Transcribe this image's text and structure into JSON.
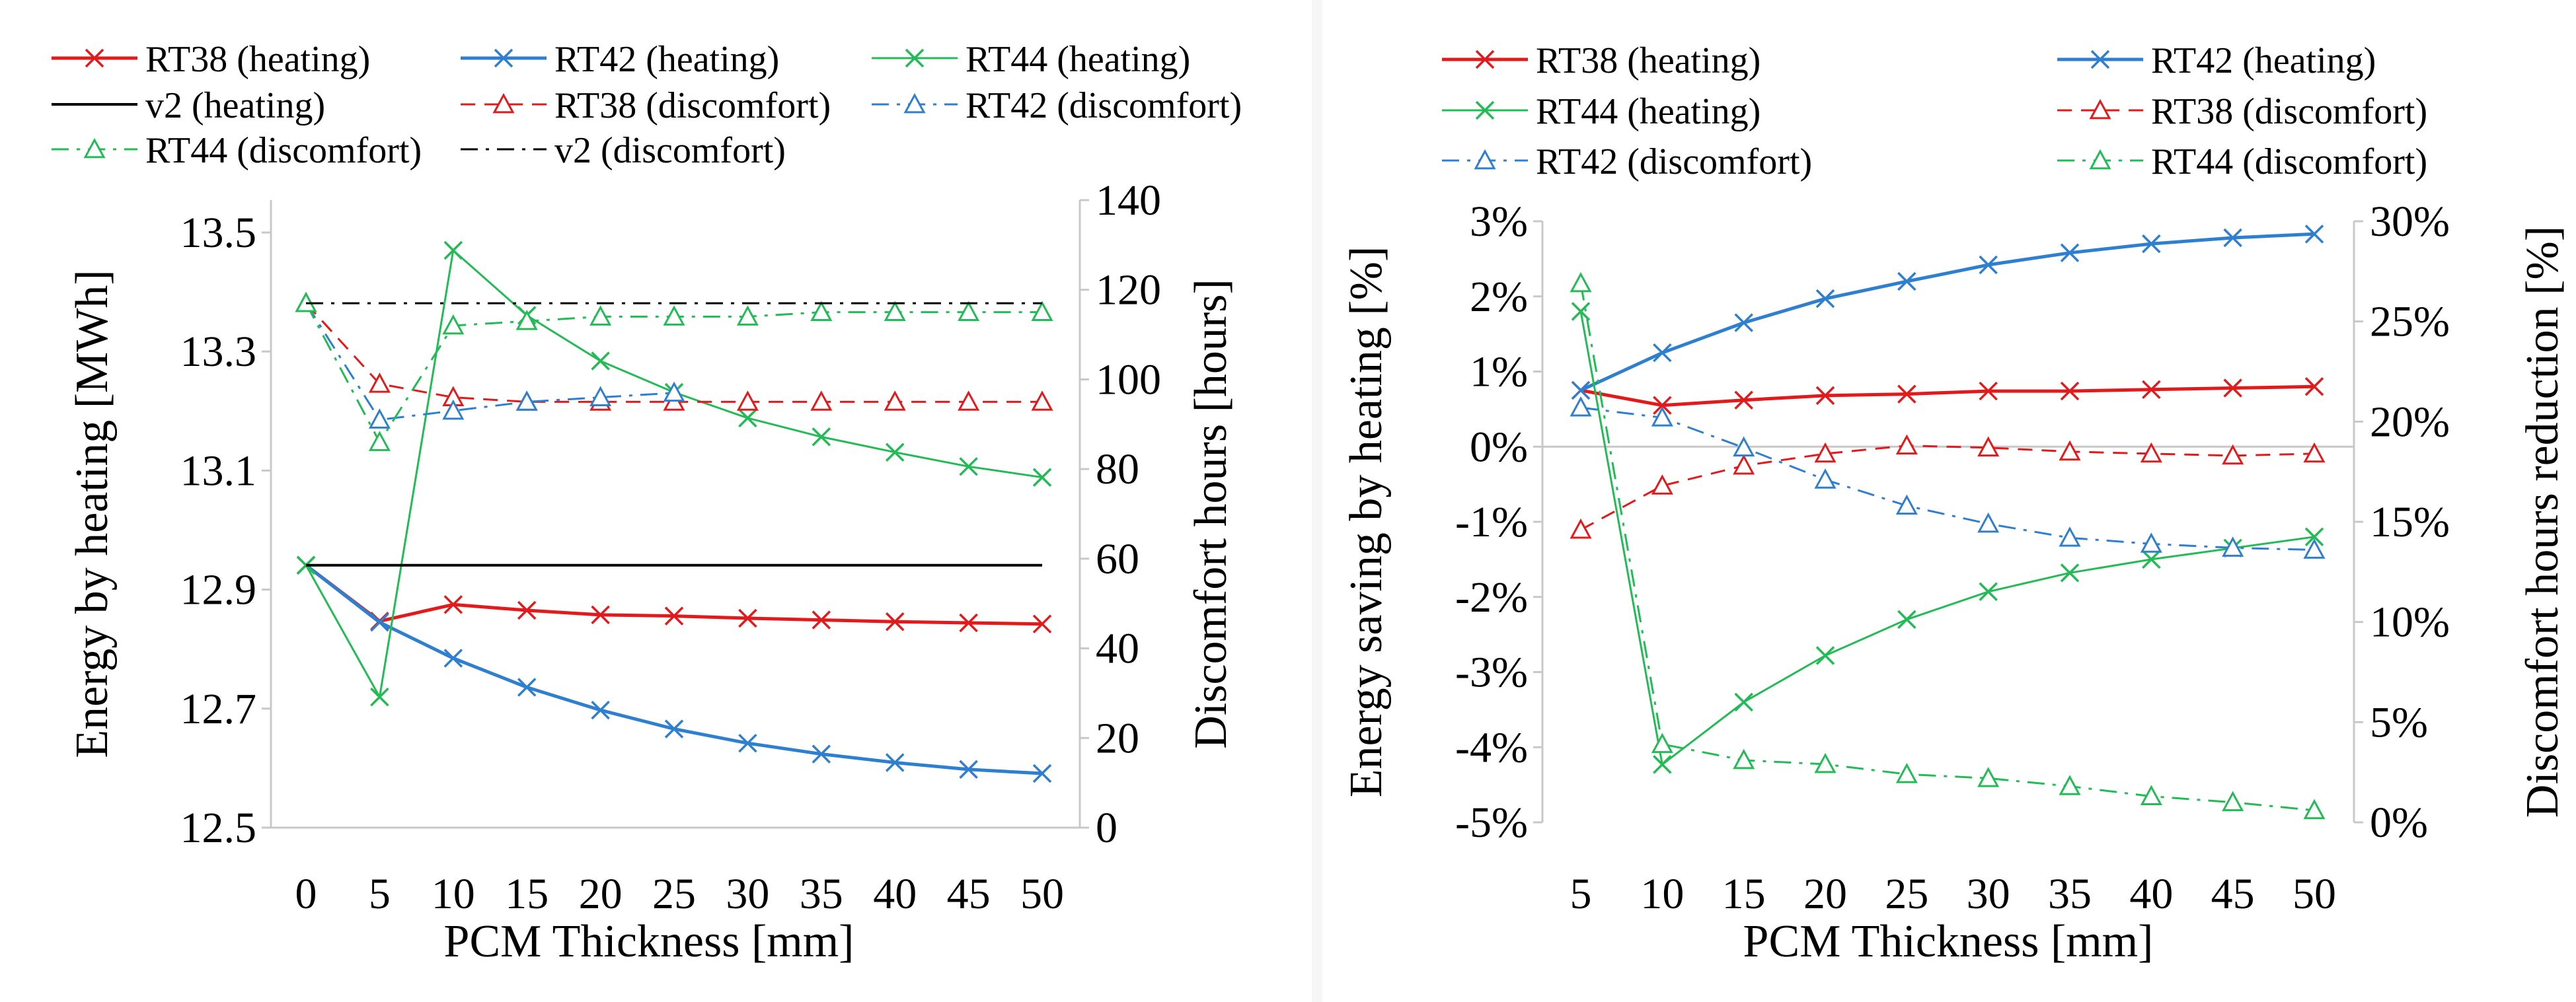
{
  "chart_data": [
    {
      "type": "line",
      "xlabel": "PCM Thickness [mm]",
      "ylabel": "Energy by heating [MWh]",
      "y2label": "Discomfort hours [hours]",
      "x": [
        0,
        5,
        10,
        15,
        20,
        25,
        30,
        35,
        40,
        45,
        50
      ],
      "ylim": [
        12.5,
        13.6
      ],
      "yticks": [
        "12.5",
        "12.7",
        "12.9",
        "13.1",
        "13.3",
        "13.5"
      ],
      "y2lim": [
        0,
        140
      ],
      "y2ticks": [
        "0",
        "20",
        "40",
        "60",
        "80",
        "100",
        "120",
        "140"
      ],
      "legend_position": "top",
      "series": [
        {
          "name": "RT38 (heating)",
          "axis": "left",
          "color": "#e31a1c",
          "dash": "solid",
          "marker": "x",
          "width": 5,
          "values": [
            12.96,
            12.862,
            12.891,
            12.881,
            12.873,
            12.871,
            12.867,
            12.864,
            12.861,
            12.859,
            12.857
          ]
        },
        {
          "name": "RT42 (heating)",
          "axis": "left",
          "color": "#2f7fd0",
          "dash": "solid",
          "marker": "x",
          "width": 5,
          "values": [
            12.96,
            12.86,
            12.797,
            12.746,
            12.706,
            12.673,
            12.648,
            12.629,
            12.614,
            12.602,
            12.595
          ]
        },
        {
          "name": "RT44  (heating)",
          "axis": "left",
          "color": "#22bb55",
          "dash": "solid",
          "marker": "x",
          "width": 3,
          "values": [
            12.96,
            12.729,
            13.512,
            13.398,
            13.318,
            13.263,
            13.218,
            13.185,
            13.158,
            13.133,
            13.114
          ]
        },
        {
          "name": "v2 (heating)",
          "axis": "left",
          "color": "#000000",
          "dash": "solid",
          "marker": "none",
          "width": 4,
          "values": [
            12.96,
            12.96,
            12.96,
            12.96,
            12.96,
            12.96,
            12.96,
            12.96,
            12.96,
            12.96,
            12.96
          ]
        },
        {
          "name": "RT38 (discomfort)",
          "axis": "right",
          "color": "#e31a1c",
          "dash": "dash",
          "marker": "triangle",
          "width": 3,
          "values": [
            117,
            99,
            96,
            95,
            95,
            95,
            95,
            95,
            95,
            95,
            95
          ]
        },
        {
          "name": "RT42 (discomfort)",
          "axis": "right",
          "color": "#2f7fd0",
          "dash": "dashdot",
          "marker": "triangle",
          "width": 3,
          "values": [
            117,
            91,
            93,
            95,
            96,
            97,
            null,
            null,
            null,
            null,
            null
          ]
        },
        {
          "name": "RT44 (discomfort)",
          "axis": "right",
          "color": "#22bb55",
          "dash": "dashdot",
          "marker": "triangle",
          "width": 3,
          "values": [
            117,
            86,
            112,
            113,
            114,
            114,
            114,
            115,
            115,
            115,
            115
          ]
        },
        {
          "name": "v2 (discomfort)",
          "axis": "right",
          "color": "#000000",
          "dash": "dashdot",
          "marker": "none",
          "width": 3,
          "values": [
            117,
            117,
            117,
            117,
            117,
            117,
            117,
            117,
            117,
            117,
            117
          ]
        }
      ]
    },
    {
      "type": "line",
      "xlabel": "PCM Thickness [mm]",
      "ylabel": "Energy  saving  by heating [%]",
      "y2label": "Discomfort hours reduction [%]",
      "x": [
        5,
        10,
        15,
        20,
        25,
        30,
        35,
        40,
        45,
        50
      ],
      "ylim": [
        -5,
        3
      ],
      "yticks": [
        "-5%",
        "-4%",
        "-3%",
        "-2%",
        "-1%",
        "0%",
        "1%",
        "2%",
        "3%"
      ],
      "y2lim": [
        0,
        30
      ],
      "y2ticks": [
        "0%",
        "5%",
        "10%",
        "15%",
        "20%",
        "25%",
        "30%"
      ],
      "legend_position": "top",
      "series": [
        {
          "name": "RT38 (heating)",
          "axis": "left",
          "color": "#e31a1c",
          "dash": "solid",
          "marker": "x",
          "width": 5,
          "values": [
            0.75,
            0.55,
            0.62,
            0.68,
            0.7,
            0.74,
            0.74,
            0.76,
            0.78,
            0.8
          ]
        },
        {
          "name": "RT42 (heating)",
          "axis": "left",
          "color": "#2f7fd0",
          "dash": "solid",
          "marker": "x",
          "width": 5,
          "values": [
            0.75,
            1.25,
            1.65,
            1.97,
            2.2,
            2.42,
            2.58,
            2.7,
            2.78,
            2.83
          ]
        },
        {
          "name": "RT44  (heating)",
          "axis": "left",
          "color": "#22bb55",
          "dash": "solid",
          "marker": "x",
          "width": 3,
          "values": [
            1.8,
            -4.23,
            -3.4,
            -2.78,
            -2.3,
            -1.93,
            -1.68,
            -1.5,
            -1.35,
            -1.2
          ]
        },
        {
          "name": "RT38 (discomfort)",
          "axis": "right",
          "color": "#e31a1c",
          "dash": "dash",
          "marker": "triangle",
          "width": 3,
          "values": [
            14.6,
            16.8,
            17.8,
            18.4,
            18.8,
            18.7,
            18.5,
            18.4,
            18.3,
            18.4
          ]
        },
        {
          "name": "RT42 (discomfort)",
          "axis": "right",
          "color": "#2f7fd0",
          "dash": "dashdot",
          "marker": "triangle",
          "width": 3,
          "values": [
            20.7,
            20.2,
            18.7,
            17.1,
            15.8,
            14.9,
            14.2,
            13.9,
            13.7,
            13.6
          ]
        },
        {
          "name": "RT44 (discomfort)",
          "axis": "right",
          "color": "#22bb55",
          "dash": "dashdot",
          "marker": "triangle",
          "width": 3,
          "values": [
            26.9,
            3.9,
            3.1,
            2.9,
            2.4,
            2.2,
            1.8,
            1.3,
            1.0,
            0.6
          ]
        }
      ]
    }
  ]
}
